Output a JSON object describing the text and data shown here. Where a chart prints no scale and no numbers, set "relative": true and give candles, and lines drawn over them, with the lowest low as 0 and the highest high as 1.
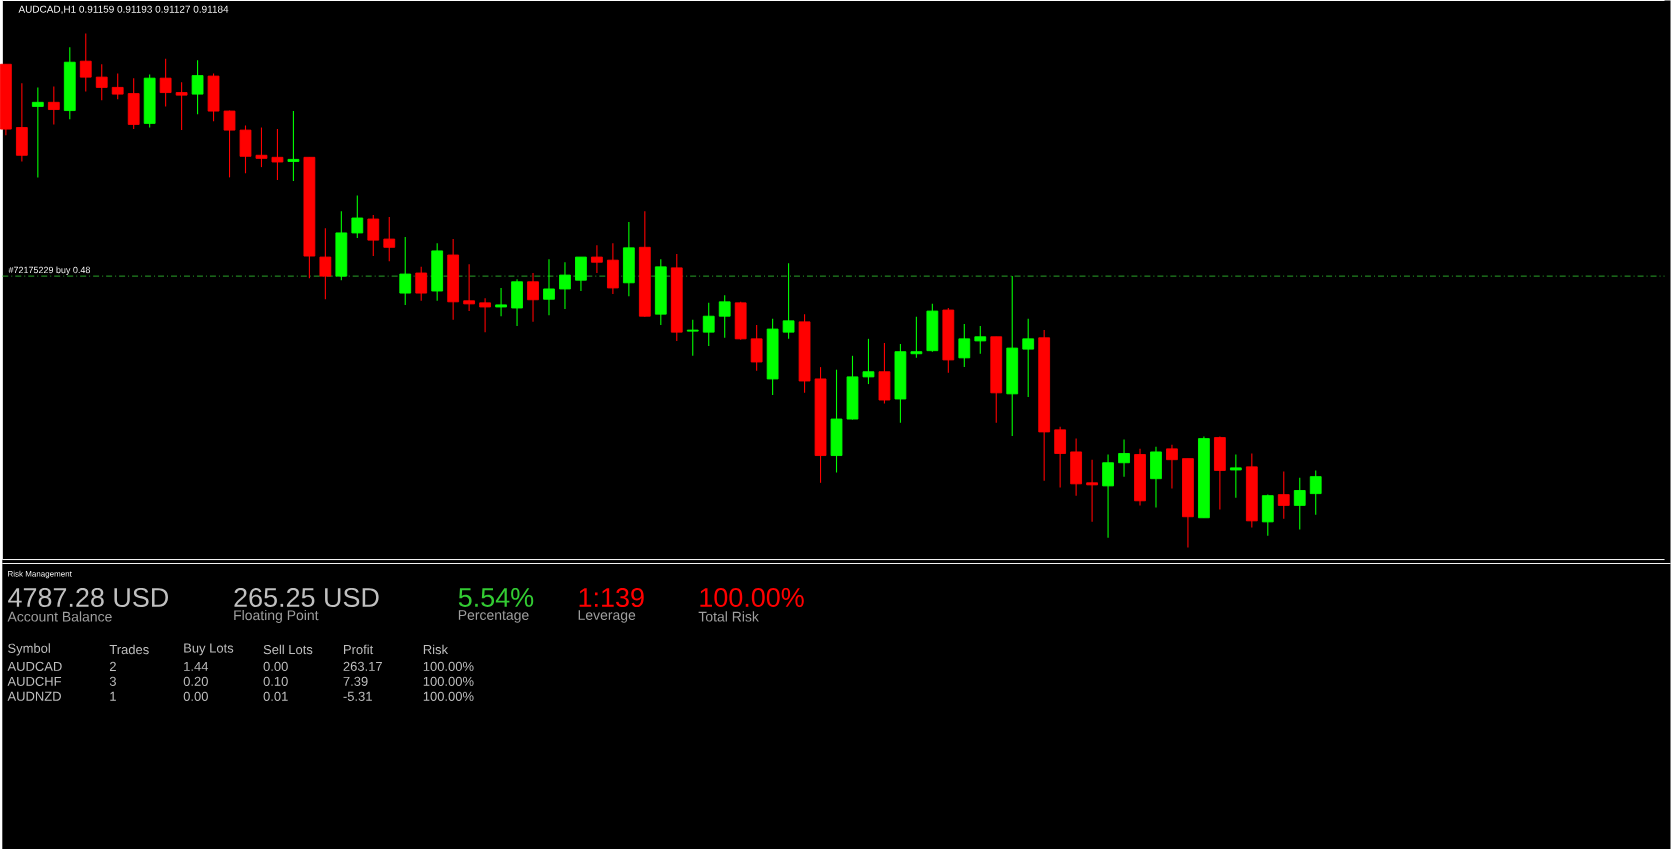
{
  "chart_data": [
    {
      "type": "candlestick",
      "title": "AUDCAD,H1  0.91159 0.91193 0.91127 0.91184",
      "relative": true,
      "categories": [
        null,
        null,
        null,
        null,
        null,
        null,
        null,
        null,
        null,
        null,
        null,
        null,
        null,
        null,
        null,
        null,
        null,
        null,
        null,
        null,
        null,
        null,
        null,
        null,
        null,
        null,
        null,
        null,
        null,
        null,
        null,
        null,
        null,
        null,
        null,
        null,
        null,
        null,
        null,
        null,
        null,
        null,
        null,
        null,
        null,
        null,
        null,
        null,
        null,
        null,
        null,
        null,
        null,
        null,
        null,
        null,
        null,
        null,
        null,
        null,
        null,
        null,
        null,
        null,
        null,
        null,
        null,
        null,
        null,
        null,
        null,
        null,
        null,
        null,
        null,
        null,
        null,
        null,
        null,
        null,
        null,
        null,
        null
      ],
      "ohlc": [
        [
          0.94,
          0.94,
          0.802,
          0.814
        ],
        [
          0.817,
          0.903,
          0.751,
          0.763
        ],
        [
          0.858,
          0.895,
          0.72,
          0.866
        ],
        [
          0.866,
          0.897,
          0.823,
          0.852
        ],
        [
          0.85,
          0.973,
          0.833,
          0.944
        ],
        [
          0.946,
          1.0,
          0.887,
          0.915
        ],
        [
          0.915,
          0.94,
          0.87,
          0.895
        ],
        [
          0.895,
          0.922,
          0.872,
          0.882
        ],
        [
          0.883,
          0.913,
          0.814,
          0.823
        ],
        [
          0.825,
          0.92,
          0.817,
          0.913
        ],
        [
          0.913,
          0.951,
          0.858,
          0.885
        ],
        [
          0.885,
          0.905,
          0.812,
          0.88
        ],
        [
          0.882,
          0.948,
          0.843,
          0.918
        ],
        [
          0.917,
          0.922,
          0.829,
          0.849
        ],
        [
          0.849,
          0.85,
          0.72,
          0.812
        ],
        [
          0.812,
          0.821,
          0.728,
          0.761
        ],
        [
          0.763,
          0.817,
          0.74,
          0.757
        ],
        [
          0.759,
          0.814,
          0.715,
          0.75
        ],
        [
          0.751,
          0.849,
          0.713,
          0.755
        ],
        [
          0.759,
          0.759,
          0.524,
          0.567
        ],
        [
          0.565,
          0.621,
          0.483,
          0.528
        ],
        [
          0.528,
          0.654,
          0.52,
          0.612
        ],
        [
          0.612,
          0.685,
          0.602,
          0.641
        ],
        [
          0.639,
          0.647,
          0.567,
          0.598
        ],
        [
          0.6,
          0.643,
          0.557,
          0.584
        ],
        [
          0.495,
          0.604,
          0.472,
          0.532
        ],
        [
          0.534,
          0.546,
          0.48,
          0.495
        ],
        [
          0.499,
          0.592,
          0.48,
          0.577
        ],
        [
          0.569,
          0.6,
          0.443,
          0.478
        ],
        [
          0.48,
          0.551,
          0.46,
          0.474
        ],
        [
          0.476,
          0.485,
          0.419,
          0.468
        ],
        [
          0.468,
          0.505,
          0.45,
          0.472
        ],
        [
          0.466,
          0.522,
          0.431,
          0.517
        ],
        [
          0.517,
          0.534,
          0.439,
          0.482
        ],
        [
          0.483,
          0.561,
          0.452,
          0.503
        ],
        [
          0.503,
          0.555,
          0.464,
          0.53
        ],
        [
          0.52,
          0.565,
          0.499,
          0.565
        ],
        [
          0.565,
          0.588,
          0.534,
          0.555
        ],
        [
          0.559,
          0.592,
          0.493,
          0.505
        ],
        [
          0.515,
          0.633,
          0.489,
          0.583
        ],
        [
          0.584,
          0.654,
          0.449,
          0.45
        ],
        [
          0.454,
          0.561,
          0.433,
          0.546
        ],
        [
          0.544,
          0.571,
          0.402,
          0.419
        ],
        [
          0.421,
          0.443,
          0.373,
          0.423
        ],
        [
          0.419,
          0.476,
          0.392,
          0.45
        ],
        [
          0.45,
          0.491,
          0.408,
          0.478
        ],
        [
          0.476,
          0.478,
          0.404,
          0.406
        ],
        [
          0.406,
          0.433,
          0.344,
          0.361
        ],
        [
          0.328,
          0.445,
          0.297,
          0.425
        ],
        [
          0.419,
          0.553,
          0.406,
          0.441
        ],
        [
          0.439,
          0.454,
          0.301,
          0.324
        ],
        [
          0.328,
          0.351,
          0.126,
          0.179
        ],
        [
          0.179,
          0.346,
          0.146,
          0.25
        ],
        [
          0.25,
          0.373,
          0.249,
          0.332
        ],
        [
          0.332,
          0.406,
          0.318,
          0.342
        ],
        [
          0.342,
          0.398,
          0.28,
          0.287
        ],
        [
          0.289,
          0.396,
          0.243,
          0.381
        ],
        [
          0.377,
          0.449,
          0.369,
          0.381
        ],
        [
          0.383,
          0.474,
          0.381,
          0.46
        ],
        [
          0.462,
          0.466,
          0.34,
          0.365
        ],
        [
          0.369,
          0.435,
          0.351,
          0.406
        ],
        [
          0.402,
          0.431,
          0.377,
          0.41
        ],
        [
          0.41,
          0.41,
          0.243,
          0.301
        ],
        [
          0.299,
          0.528,
          0.217,
          0.388
        ],
        [
          0.386,
          0.445,
          0.293,
          0.406
        ],
        [
          0.408,
          0.423,
          0.13,
          0.225
        ],
        [
          0.229,
          0.235,
          0.117,
          0.183
        ],
        [
          0.186,
          0.212,
          0.101,
          0.124
        ],
        [
          0.126,
          0.171,
          0.05,
          0.122
        ],
        [
          0.12,
          0.181,
          0.019,
          0.165
        ],
        [
          0.165,
          0.21,
          0.138,
          0.183
        ],
        [
          0.181,
          0.192,
          0.082,
          0.091
        ],
        [
          0.134,
          0.196,
          0.078,
          0.186
        ],
        [
          0.192,
          0.2,
          0.115,
          0.171
        ],
        [
          0.173,
          0.173,
          0.0,
          0.06
        ],
        [
          0.058,
          0.216,
          0.058,
          0.212
        ],
        [
          0.214,
          0.216,
          0.074,
          0.15
        ],
        [
          0.151,
          0.181,
          0.097,
          0.155
        ],
        [
          0.157,
          0.183,
          0.039,
          0.052
        ],
        [
          0.05,
          0.103,
          0.023,
          0.101
        ],
        [
          0.103,
          0.148,
          0.056,
          0.082
        ],
        [
          0.082,
          0.136,
          0.035,
          0.111
        ],
        [
          0.105,
          0.15,
          0.064,
          0.138
        ]
      ],
      "colors": [
        "#ff0000",
        "#ff0000",
        "#00ff00",
        "#ff0000",
        "#00ff00",
        "#ff0000",
        "#ff0000",
        "#ff0000",
        "#ff0000",
        "#00ff00",
        "#ff0000",
        "#ff0000",
        "#00ff00",
        "#ff0000",
        "#ff0000",
        "#ff0000",
        "#ff0000",
        "#ff0000",
        "#00ff00",
        "#ff0000",
        "#ff0000",
        "#00ff00",
        "#00ff00",
        "#ff0000",
        "#ff0000",
        "#00ff00",
        "#ff0000",
        "#00ff00",
        "#ff0000",
        "#ff0000",
        "#ff0000",
        "#00ff00",
        "#00ff00",
        "#ff0000",
        "#00ff00",
        "#00ff00",
        "#00ff00",
        "#ff0000",
        "#ff0000",
        "#00ff00",
        "#ff0000",
        "#00ff00",
        "#ff0000",
        "#00ff00",
        "#00ff00",
        "#00ff00",
        "#ff0000",
        "#ff0000",
        "#00ff00",
        "#00ff00",
        "#ff0000",
        "#ff0000",
        "#00ff00",
        "#00ff00",
        "#00ff00",
        "#ff0000",
        "#00ff00",
        "#00ff00",
        "#00ff00",
        "#ff0000",
        "#00ff00",
        "#00ff00",
        "#ff0000",
        "#00ff00",
        "#00ff00",
        "#ff0000",
        "#ff0000",
        "#ff0000",
        "#ff0000",
        "#00ff00",
        "#00ff00",
        "#ff0000",
        "#00ff00",
        "#ff0000",
        "#ff0000",
        "#00ff00",
        "#ff0000",
        "#00ff00",
        "#ff0000",
        "#00ff00",
        "#ff0000",
        "#00ff00",
        "#00ff00"
      ],
      "ref_lines": [
        {
          "axis": "y",
          "value": 0.528,
          "label": "#72175229 buy 0.48",
          "color": "#33cc33",
          "line_style": "dashed"
        }
      ]
    },
    {
      "type": "other",
      "title": "Risk Management",
      "annotations": [
        "4787.28 USD",
        "Account Balance",
        "265.25 USD",
        "Floating Point",
        "5.54%",
        "Percentage",
        "1:139",
        "Leverage",
        "100.00%",
        "Total Risk",
        "Symbol",
        "Trades",
        "Buy Lots",
        "Sell Lots",
        "Profit",
        "Risk",
        "AUDCAD",
        "2",
        "1.44",
        "0.00",
        "263.17",
        "100.00%",
        "AUDCHF",
        "3",
        "0.20",
        "0.10",
        "7.39",
        "100.00%",
        "AUDNZD",
        "1",
        "0.00",
        "0.01",
        "-5.31",
        "100.00%"
      ],
      "colors": [
        "#c0c0c0",
        "#c0c0c0",
        "#33cc33",
        "#ff0000",
        "#ff0000"
      ]
    }
  ]
}
